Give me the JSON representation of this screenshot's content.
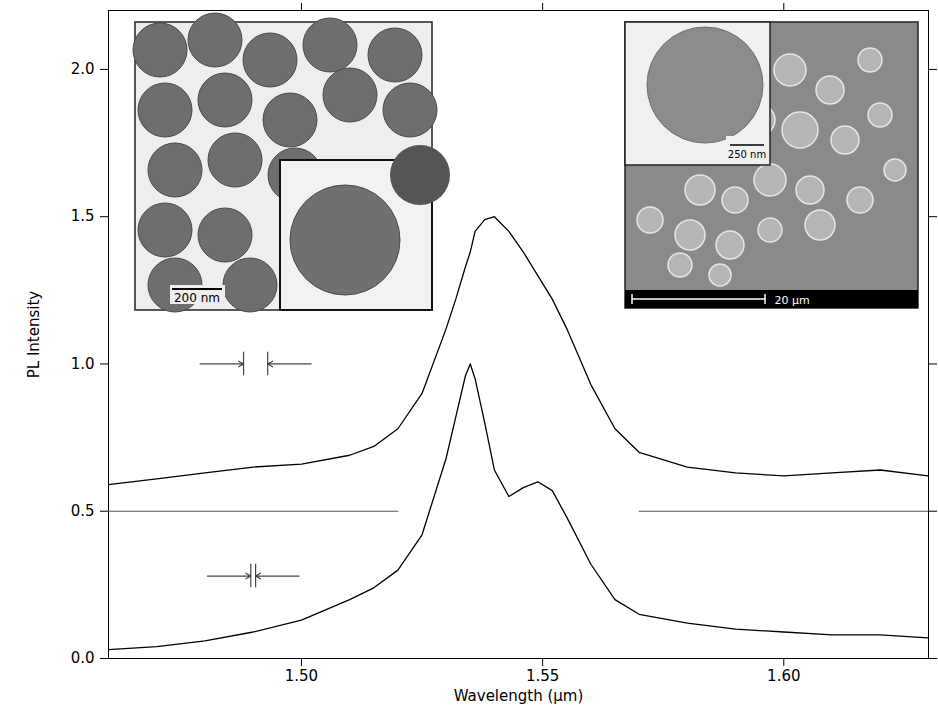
{
  "chart_data": {
    "type": "line",
    "x_label": "Wavelength (μm)",
    "y_label": "PL Intensity",
    "xlim": [
      1.46,
      1.63
    ],
    "ylim": [
      0,
      2.2
    ],
    "xticks": [
      {
        "value": 1.5,
        "label": "1.50"
      },
      {
        "value": 1.55,
        "label": "1.55"
      },
      {
        "value": 1.6,
        "label": "1.60"
      }
    ],
    "yticks": [
      {
        "value": 0,
        "label": "0.0"
      },
      {
        "value": 0.5,
        "label": "0.5"
      },
      {
        "value": 1,
        "label": "1.0"
      },
      {
        "value": 1.5,
        "label": "1.5"
      },
      {
        "value": 2,
        "label": "2.0"
      }
    ],
    "x": [
      1.46,
      1.47,
      1.48,
      1.49,
      1.5,
      1.51,
      1.515,
      1.52,
      1.525,
      1.53,
      1.532,
      1.534,
      1.535,
      1.536,
      1.538,
      1.54,
      1.543,
      1.546,
      1.549,
      1.552,
      1.555,
      1.56,
      1.565,
      1.57,
      1.58,
      1.59,
      1.6,
      1.61,
      1.62,
      1.63
    ],
    "series": [
      {
        "color": "#000000",
        "values": [
          0.59,
          0.61,
          0.63,
          0.65,
          0.66,
          0.69,
          0.72,
          0.78,
          0.9,
          1.12,
          1.22,
          1.33,
          1.38,
          1.45,
          1.49,
          1.5,
          1.45,
          1.38,
          1.3,
          1.22,
          1.12,
          0.93,
          0.78,
          0.7,
          0.65,
          0.63,
          0.62,
          0.63,
          0.64,
          0.62
        ]
      },
      {
        "color": "#000000",
        "values": [
          0.03,
          0.04,
          0.06,
          0.09,
          0.13,
          0.2,
          0.24,
          0.3,
          0.42,
          0.68,
          0.82,
          0.96,
          1.0,
          0.95,
          0.8,
          0.64,
          0.55,
          0.58,
          0.6,
          0.57,
          0.48,
          0.32,
          0.2,
          0.15,
          0.12,
          0.1,
          0.09,
          0.08,
          0.08,
          0.07
        ]
      }
    ],
    "reference_lines": [
      {
        "y": 0.5,
        "x": [
          1.46,
          1.52
        ]
      },
      {
        "y": 0.5,
        "x": [
          1.57,
          1.63
        ]
      }
    ],
    "resolution_markers": [
      {
        "y": 1.0,
        "x": [
          1.488,
          1.493
        ]
      },
      {
        "y": 0.28,
        "x": [
          1.4895,
          1.4905
        ]
      }
    ],
    "insets": [
      {
        "scale_bars": [
          "200 nm"
        ]
      },
      {
        "scale_bars": [
          "250 nm",
          "20 μm"
        ]
      }
    ]
  }
}
